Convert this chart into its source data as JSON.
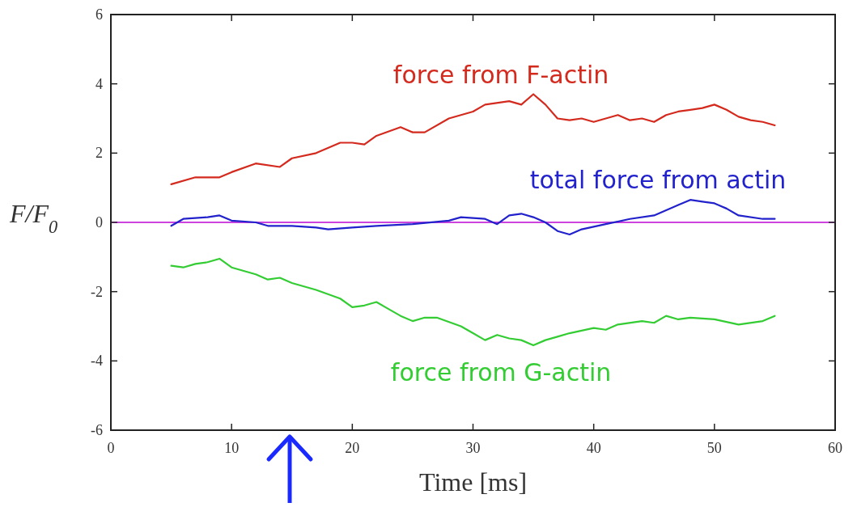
{
  "chart_data": {
    "type": "line",
    "xlabel": "Time [ms]",
    "ylabel": "F/F$_{0}$",
    "xlim": [
      0,
      60
    ],
    "ylim": [
      -6,
      6
    ],
    "xticks": [
      0,
      10,
      20,
      30,
      40,
      50,
      60
    ],
    "yticks": [
      -6,
      -4,
      -2,
      0,
      2,
      4,
      6
    ],
    "grid": false,
    "marker": "none",
    "line_style": "solid",
    "ref_lines": [
      {
        "axis": "y",
        "value": 0,
        "color": "#cc44dd"
      }
    ],
    "series": [
      {
        "name": "force from F-actin",
        "color": "#d42a1e",
        "x": [
          5,
          7,
          9,
          10,
          12,
          14,
          15,
          17,
          19,
          20,
          21,
          22,
          24,
          25,
          26,
          28,
          30,
          31,
          33,
          34,
          35,
          36,
          37,
          38,
          39,
          40,
          41,
          42,
          43,
          44,
          45,
          46,
          47,
          48,
          49,
          50,
          51,
          52,
          53,
          54,
          55
        ],
        "values": [
          1.1,
          1.3,
          1.3,
          1.45,
          1.7,
          1.6,
          1.85,
          2.0,
          2.3,
          2.3,
          2.25,
          2.5,
          2.75,
          2.6,
          2.6,
          3.0,
          3.2,
          3.4,
          3.5,
          3.4,
          3.7,
          3.4,
          3.0,
          2.95,
          3.0,
          2.9,
          3.0,
          3.1,
          2.95,
          3.0,
          2.9,
          3.1,
          3.2,
          3.25,
          3.3,
          3.4,
          3.25,
          3.05,
          2.95,
          2.9,
          2.8
        ]
      },
      {
        "name": "total force from actin",
        "color": "#2222cc",
        "x": [
          5,
          6,
          8,
          9,
          10,
          12,
          13,
          15,
          17,
          18,
          20,
          22,
          25,
          28,
          29,
          31,
          32,
          33,
          34,
          35,
          36,
          37,
          38,
          39,
          41,
          43,
          45,
          46,
          47,
          48,
          49,
          50,
          51,
          52,
          54,
          55
        ],
        "values": [
          -0.1,
          0.1,
          0.15,
          0.2,
          0.05,
          0.0,
          -0.1,
          -0.1,
          -0.15,
          -0.2,
          -0.15,
          -0.1,
          -0.05,
          0.05,
          0.15,
          0.1,
          -0.05,
          0.2,
          0.25,
          0.15,
          0.0,
          -0.25,
          -0.35,
          -0.2,
          -0.05,
          0.1,
          0.2,
          0.35,
          0.5,
          0.65,
          0.6,
          0.55,
          0.4,
          0.2,
          0.1,
          0.1
        ]
      },
      {
        "name": "force from G-actin",
        "color": "#33cc33",
        "x": [
          5,
          6,
          7,
          8,
          9,
          10,
          12,
          13,
          14,
          15,
          17,
          19,
          20,
          21,
          22,
          23,
          24,
          25,
          26,
          27,
          29,
          30,
          31,
          32,
          33,
          34,
          35,
          36,
          37,
          38,
          40,
          41,
          42,
          44,
          45,
          46,
          47,
          48,
          50,
          52,
          54,
          55
        ],
        "values": [
          -1.25,
          -1.3,
          -1.2,
          -1.15,
          -1.05,
          -1.3,
          -1.5,
          -1.65,
          -1.6,
          -1.75,
          -1.95,
          -2.2,
          -2.45,
          -2.4,
          -2.3,
          -2.5,
          -2.7,
          -2.85,
          -2.75,
          -2.75,
          -3.0,
          -3.2,
          -3.4,
          -3.25,
          -3.35,
          -3.4,
          -3.55,
          -3.4,
          -3.3,
          -3.2,
          -3.05,
          -3.1,
          -2.95,
          -2.85,
          -2.9,
          -2.7,
          -2.8,
          -2.75,
          -2.8,
          -2.95,
          -2.85,
          -2.7
        ]
      }
    ]
  }
}
